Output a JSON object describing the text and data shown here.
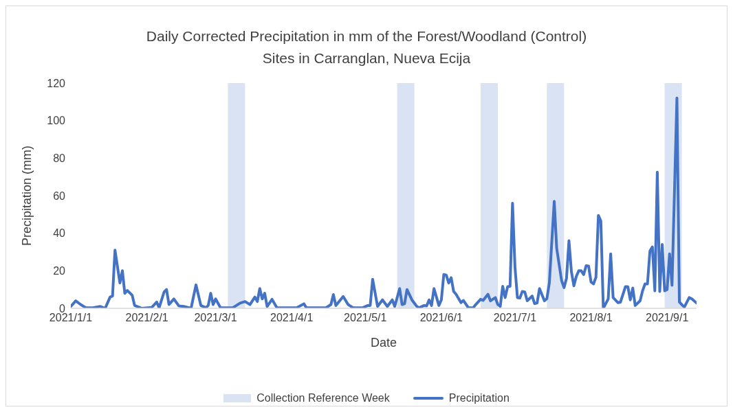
{
  "chart_data": {
    "type": "line",
    "title": "Daily Corrected Precipitation in mm of the Forest/Woodland (Control) Sites in Carranglan, Nueva Ecija",
    "xlabel": "Date",
    "ylabel": "Precipitation (mm)",
    "x": [
      "2021-01-01",
      "2021-01-03",
      "2021-01-05",
      "2021-01-07",
      "2021-01-10",
      "2021-01-13",
      "2021-01-15",
      "2021-01-17",
      "2021-01-18",
      "2021-01-19",
      "2021-01-21",
      "2021-01-22",
      "2021-01-23",
      "2021-01-24",
      "2021-01-26",
      "2021-01-27",
      "2021-01-30",
      "2021-02-03",
      "2021-02-05",
      "2021-02-06",
      "2021-02-08",
      "2021-02-09",
      "2021-02-10",
      "2021-02-12",
      "2021-02-14",
      "2021-02-16",
      "2021-02-19",
      "2021-02-21",
      "2021-02-23",
      "2021-02-25",
      "2021-02-26",
      "2021-02-27",
      "2021-02-28",
      "2021-03-01",
      "2021-03-03",
      "2021-03-08",
      "2021-03-11",
      "2021-03-13",
      "2021-03-15",
      "2021-03-17",
      "2021-03-18",
      "2021-03-19",
      "2021-03-20",
      "2021-03-21",
      "2021-03-22",
      "2021-03-24",
      "2021-03-26",
      "2021-04-03",
      "2021-04-06",
      "2021-04-07",
      "2021-04-15",
      "2021-04-17",
      "2021-04-18",
      "2021-04-19",
      "2021-04-22",
      "2021-04-24",
      "2021-04-26",
      "2021-04-30",
      "2021-05-02",
      "2021-05-03",
      "2021-05-04",
      "2021-05-06",
      "2021-05-08",
      "2021-05-10",
      "2021-05-12",
      "2021-05-13",
      "2021-05-15",
      "2021-05-16",
      "2021-05-17",
      "2021-05-18",
      "2021-05-20",
      "2021-05-22",
      "2021-05-23",
      "2021-05-25",
      "2021-05-26",
      "2021-05-27",
      "2021-05-28",
      "2021-05-29",
      "2021-05-31",
      "2021-06-01",
      "2021-06-02",
      "2021-06-03",
      "2021-06-04",
      "2021-06-05",
      "2021-06-06",
      "2021-06-07",
      "2021-06-09",
      "2021-06-10",
      "2021-06-12",
      "2021-06-14",
      "2021-06-15",
      "2021-06-17",
      "2021-06-18",
      "2021-06-20",
      "2021-06-21",
      "2021-06-23",
      "2021-06-24",
      "2021-06-25",
      "2021-06-26",
      "2021-06-27",
      "2021-06-28",
      "2021-06-29",
      "2021-06-30",
      "2021-07-01",
      "2021-07-02",
      "2021-07-03",
      "2021-07-04",
      "2021-07-05",
      "2021-07-06",
      "2021-07-08",
      "2021-07-09",
      "2021-07-10",
      "2021-07-11",
      "2021-07-13",
      "2021-07-14",
      "2021-07-15",
      "2021-07-17",
      "2021-07-18",
      "2021-07-20",
      "2021-07-21",
      "2021-07-22",
      "2021-07-23",
      "2021-07-24",
      "2021-07-25",
      "2021-07-26",
      "2021-07-27",
      "2021-07-28",
      "2021-07-29",
      "2021-07-30",
      "2021-07-31",
      "2021-08-01",
      "2021-08-02",
      "2021-08-03",
      "2021-08-04",
      "2021-08-05",
      "2021-08-06",
      "2021-08-08",
      "2021-08-09",
      "2021-08-10",
      "2021-08-12",
      "2021-08-13",
      "2021-08-15",
      "2021-08-16",
      "2021-08-17",
      "2021-08-18",
      "2021-08-19",
      "2021-08-21",
      "2021-08-22",
      "2021-08-23",
      "2021-08-24",
      "2021-08-25",
      "2021-08-26",
      "2021-08-27",
      "2021-08-28",
      "2021-08-29",
      "2021-08-30",
      "2021-08-31",
      "2021-09-01",
      "2021-09-02",
      "2021-09-03",
      "2021-09-05",
      "2021-09-06",
      "2021-09-08",
      "2021-09-10",
      "2021-09-11",
      "2021-09-13"
    ],
    "series": [
      {
        "name": "Precipitation",
        "color": "#4472c4",
        "values": [
          1,
          4,
          2,
          0.4,
          0.3,
          1,
          0,
          6,
          6.5,
          31,
          13.5,
          20,
          8,
          9.5,
          7,
          1.5,
          0,
          0.5,
          3.3,
          0.3,
          8.7,
          10,
          2,
          5,
          1.3,
          1,
          0,
          12.5,
          1.5,
          0.3,
          1.5,
          8,
          2,
          5,
          0.3,
          0.3,
          2.8,
          3.6,
          2,
          6,
          3.6,
          10.5,
          5,
          8,
          1,
          4.8,
          0.3,
          0.3,
          2.4,
          0.3,
          0.3,
          2,
          7.3,
          1.5,
          6.3,
          2,
          0.3,
          0.3,
          1.5,
          1.5,
          15.5,
          1,
          4.5,
          1,
          4.5,
          1,
          10.5,
          2,
          2.4,
          10,
          4.5,
          1,
          0.3,
          1.5,
          1.3,
          4.5,
          1.5,
          10.5,
          1.5,
          4.5,
          18,
          17.7,
          13.5,
          16.3,
          9,
          7.5,
          3,
          4.2,
          0.3,
          0.3,
          2,
          4.8,
          4.2,
          7.5,
          4,
          5.7,
          2,
          1,
          11.7,
          5.7,
          11.5,
          11.7,
          56,
          22,
          5.7,
          5.5,
          9,
          8.7,
          4,
          6.5,
          2.5,
          2.8,
          10.5,
          4,
          5.1,
          13.5,
          57,
          32,
          14.8,
          11,
          16,
          36,
          19.5,
          12,
          17,
          20,
          20,
          18,
          22.7,
          22.5,
          14,
          13,
          16.5,
          49.5,
          46.5,
          0,
          5,
          29,
          5.7,
          3,
          3.3,
          11.5,
          11.5,
          4.5,
          10.8,
          1.5,
          4,
          9.3,
          13,
          13,
          30.5,
          32.7,
          9.3,
          72.5,
          9,
          34,
          9.3,
          10,
          29,
          12.3,
          112,
          3.3,
          0.6,
          5.7,
          5.1,
          2.8
        ]
      }
    ],
    "bands": [
      {
        "axis": "x",
        "from": "2021-03-06",
        "to": "2021-03-13",
        "label": "Collection Reference Week",
        "color": "#dae3f3"
      },
      {
        "axis": "x",
        "from": "2021-05-14",
        "to": "2021-05-21",
        "color": "#dae3f3"
      },
      {
        "axis": "x",
        "from": "2021-06-17",
        "to": "2021-06-24",
        "color": "#dae3f3"
      },
      {
        "axis": "x",
        "from": "2021-07-14",
        "to": "2021-07-21",
        "color": "#dae3f3"
      },
      {
        "axis": "x",
        "from": "2021-08-31",
        "to": "2021-09-07",
        "color": "#dae3f3"
      }
    ],
    "xlim": [
      "2021-01-01",
      "2021-09-13"
    ],
    "xticks": [
      {
        "value": "2021-01-01",
        "label": "2021/1/1"
      },
      {
        "value": "2021-02-01",
        "label": "2021/2/1"
      },
      {
        "value": "2021-03-01",
        "label": "2021/3/1"
      },
      {
        "value": "2021-04-01",
        "label": "2021/4/1"
      },
      {
        "value": "2021-05-01",
        "label": "2021/5/1"
      },
      {
        "value": "2021-06-01",
        "label": "2021/6/1"
      },
      {
        "value": "2021-07-01",
        "label": "2021/7/1"
      },
      {
        "value": "2021-08-01",
        "label": "2021/8/1"
      },
      {
        "value": "2021-09-01",
        "label": "2021/9/1"
      }
    ],
    "ylim": [
      0,
      120
    ],
    "yticks": [
      0,
      20,
      40,
      60,
      80,
      100,
      120
    ],
    "grid": false,
    "legend": "bottom"
  }
}
